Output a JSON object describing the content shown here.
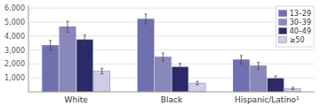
{
  "chart_data": {
    "type": "bar",
    "categories": [
      "White",
      "Black",
      "Hispanic/Latino¹"
    ],
    "series": [
      {
        "name": "13–29",
        "color": "#7070b0",
        "values": [
          3330,
          5220,
          2300
        ],
        "errors": [
          350,
          350,
          300
        ]
      },
      {
        "name": "30–39",
        "color": "#8888bb",
        "values": [
          4670,
          2500,
          1870
        ],
        "errors": [
          380,
          280,
          250
        ]
      },
      {
        "name": "40–49",
        "color": "#2a2a6a",
        "values": [
          3740,
          1780,
          960
        ],
        "errors": [
          320,
          250,
          180
        ]
      },
      {
        "name": "≥50",
        "color": "#d0cce8",
        "values": [
          1490,
          630,
          240
        ],
        "errors": [
          200,
          120,
          80
        ]
      }
    ],
    "ylim": [
      0,
      6200
    ],
    "yticks": [
      {
        "value": 1000,
        "label": "1,000"
      },
      {
        "value": 2000,
        "label": "2,000"
      },
      {
        "value": 3000,
        "label": "3,000"
      },
      {
        "value": 4000,
        "label": "4,000"
      },
      {
        "value": 5000,
        "label": "5,000"
      },
      {
        "value": 6000,
        "label": "6,000"
      }
    ],
    "grid": true,
    "legend": "upper right"
  }
}
